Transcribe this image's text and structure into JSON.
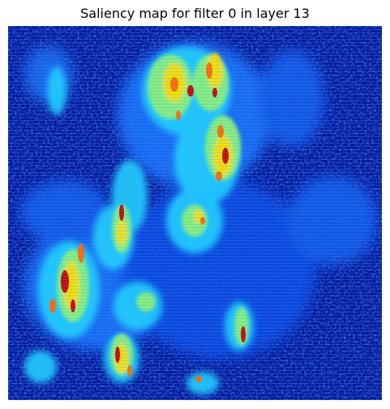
{
  "figure": {
    "title": "Saliency map for filter 0 in layer 13"
  },
  "image": {
    "subject": "saliency-heatmap",
    "colormap": "jet",
    "colors": {
      "background_low": "#00008b",
      "low": "#0a2dd6",
      "mid_low": "#1e78ff",
      "mid": "#24d0ff",
      "mid_high": "#8cf07a",
      "high": "#ffe000",
      "very_high": "#ff6a00",
      "peak": "#c8000a"
    },
    "axes_visible": false
  }
}
